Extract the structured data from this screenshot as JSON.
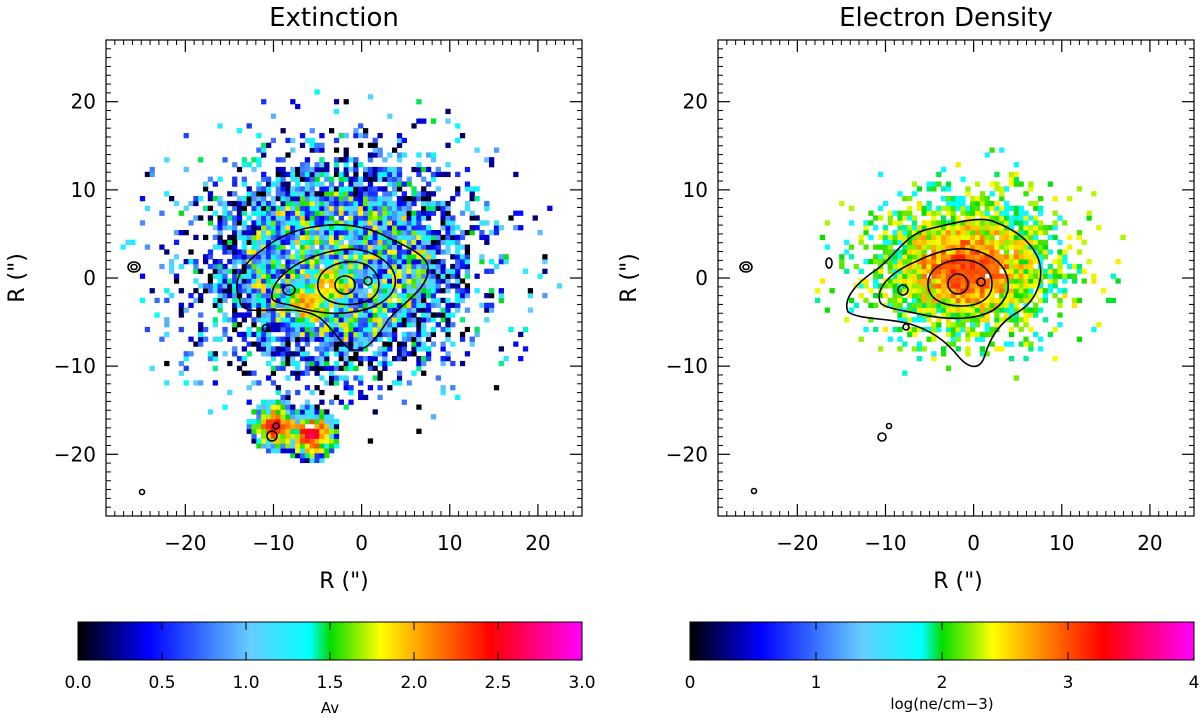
{
  "chart_data": [
    {
      "type": "heatmap",
      "title": "Extinction",
      "xlabel": "R (\")",
      "ylabel": "R (\")",
      "xlim": [
        -29,
        25
      ],
      "ylim": [
        -27,
        27
      ],
      "x_ticks": [
        -20,
        -10,
        0,
        10,
        20
      ],
      "y_ticks": [
        -20,
        -10,
        0,
        10,
        20
      ],
      "x_tick_labels": [
        "−20",
        "−10",
        "0",
        "10",
        "20"
      ],
      "y_tick_labels": [
        "−20",
        "−10",
        "0",
        "10",
        "20"
      ],
      "emission_extent": {
        "rx": 15,
        "ry": 12,
        "center": [
          -3,
          1
        ]
      },
      "peak_regions": [
        {
          "x": -6,
          "y": -3,
          "value": 2.3
        },
        {
          "x": -4,
          "y": -1,
          "value": 2.1
        },
        {
          "x": -10,
          "y": -17,
          "value": 2.8
        },
        {
          "x": -6,
          "y": -18,
          "value": 2.9
        }
      ],
      "colorbar": {
        "min": 0.0,
        "max": 3.0,
        "ticks": [
          "0.0",
          "0.5",
          "1.0",
          "1.5",
          "2.0",
          "2.5",
          "3.0"
        ],
        "label": "Av"
      },
      "colormap": [
        "#000000",
        "#0000ff",
        "#66ccff",
        "#00ffff",
        "#00dd00",
        "#ffff00",
        "#ff8800",
        "#ff0000",
        "#ff00ff"
      ]
    },
    {
      "type": "heatmap",
      "title": "Electron Density",
      "xlabel": "R (\")",
      "ylabel": "R (\")",
      "xlim": [
        -29,
        25
      ],
      "ylim": [
        -27,
        27
      ],
      "x_ticks": [
        -20,
        -10,
        0,
        10,
        20
      ],
      "y_ticks": [
        -20,
        -10,
        0,
        10,
        20
      ],
      "x_tick_labels": [
        "−20",
        "−10",
        "0",
        "10",
        "20"
      ],
      "y_tick_labels": [
        "−20",
        "−10",
        "0",
        "10",
        "20"
      ],
      "emission_extent": {
        "rx": 11,
        "ry": 8,
        "center": [
          -1,
          1
        ]
      },
      "peak_regions": [
        {
          "x": -1.5,
          "y": 0,
          "value": 3.2
        },
        {
          "x": 1,
          "y": 0.5,
          "value": 3.0
        }
      ],
      "colorbar": {
        "min": 0,
        "max": 4,
        "ticks": [
          "0",
          "1",
          "2",
          "3",
          "4"
        ],
        "label": "log(ne/cm−3)"
      },
      "colormap": [
        "#000000",
        "#0000ff",
        "#66ccff",
        "#00ffff",
        "#00dd00",
        "#ffff00",
        "#ff8800",
        "#ff0000",
        "#ff00ff"
      ]
    }
  ]
}
